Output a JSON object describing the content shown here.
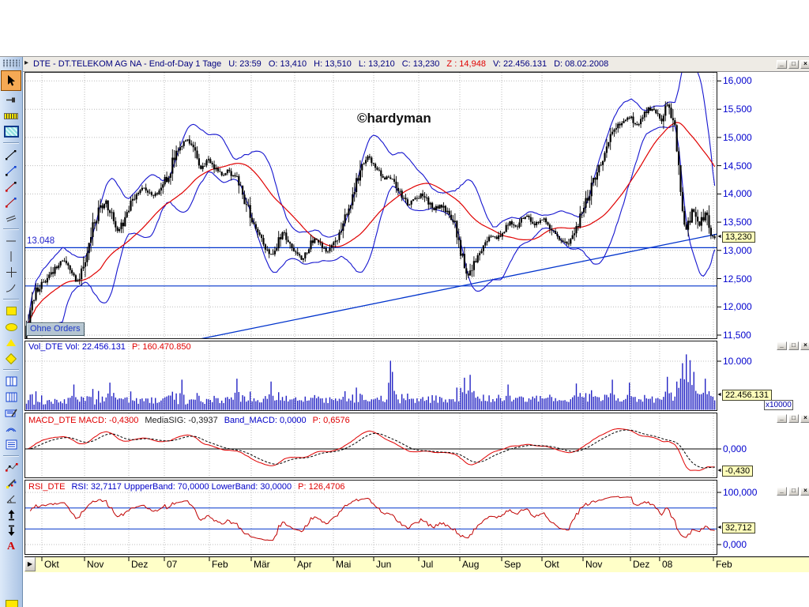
{
  "window": {
    "title": "DTE - DT.TELEKOM AG NA - End-of-Day 1 Tage",
    "title_stats": [
      {
        "text": "U: 23:59",
        "color": "#00007f"
      },
      {
        "text": "O: 13,410",
        "color": "#00007f"
      },
      {
        "text": "H: 13,510",
        "color": "#00007f"
      },
      {
        "text": "L: 13,210",
        "color": "#00007f"
      },
      {
        "text": "C: 13,230",
        "color": "#00007f"
      },
      {
        "text": "Z : 14,948",
        "color": "#e00000"
      },
      {
        "text": "V: 22.456.131",
        "color": "#00007f"
      },
      {
        "text": "D: 08.02.2008",
        "color": "#00007f"
      }
    ],
    "buttons": [
      "minimize",
      "maximize",
      "close"
    ]
  },
  "watermark": "©hardyman",
  "annotations": {
    "orders_label": "Ohne Orders"
  },
  "panes": {
    "volume": {
      "header_main": "Vol_DTE  Vol: 22.456.131",
      "header_p": "P: 160.470.850"
    },
    "macd": {
      "h1": "MACD_DTE  MACD: -0,4300",
      "h2": "MediaSIG: -0,3937",
      "h3": "Band_MACD: 0,0000",
      "h4": "P: 0,6576"
    },
    "rsi": {
      "h1": "RSI_DTE",
      "h2": "RSI: 32,7117  UppperBand: 70,0000  LowerBand: 30,0000",
      "h3": "P: 126,4706"
    }
  },
  "toolbar_tools": [
    "cursor",
    "pin",
    "ruler",
    "zoom-rect",
    "sep",
    "trendline-black",
    "trendline-blue",
    "trendline-red-black",
    "trendline-red-blue",
    "parallel-lines",
    "sep",
    "horizontal-line",
    "vertical-line",
    "cross",
    "curve",
    "sep",
    "rect-shape",
    "ellipse-shape",
    "triangle-shape",
    "diamond-shape",
    "sep",
    "split-2",
    "split-3",
    "edit-grid",
    "waves",
    "lined-box",
    "sep",
    "zigzag",
    "pencil",
    "angle",
    "arrow-up",
    "arrow-down",
    "text"
  ],
  "colors": {
    "axis_text": "#0000cd",
    "candle": "#000000",
    "ma_line": "#e00000",
    "band_line": "#1515cf",
    "support_line": "#0033cc",
    "volume_bar": "#2424c4",
    "macd_line": "#e00000",
    "signal_line": "#000000",
    "rsi_line": "#c00000",
    "value_box_bg": "#ffffbb",
    "axis_strip_bg": "#ffffc8"
  },
  "chart_data": [
    {
      "type": "candlestick",
      "name": "price",
      "title": "DTE - DT.TELEKOM AG NA - End-of-Day 1 Tage",
      "ylim": [
        11430,
        16160
      ],
      "yticks": [
        {
          "v": 16000,
          "label": "16,000"
        },
        {
          "v": 15500,
          "label": "15,500"
        },
        {
          "v": 15000,
          "label": "15,000"
        },
        {
          "v": 14500,
          "label": "14,500"
        },
        {
          "v": 14000,
          "label": "14,000"
        },
        {
          "v": 13500,
          "label": "13,500"
        },
        {
          "v": 13000,
          "label": "13,000"
        },
        {
          "v": 12500,
          "label": "12,500"
        },
        {
          "v": 12000,
          "label": "12,000"
        },
        {
          "v": 11500,
          "label": "11,500"
        }
      ],
      "xticks": [
        {
          "f": 0.0251,
          "label": "Okt"
        },
        {
          "f": 0.0867,
          "label": "Nov"
        },
        {
          "f": 0.1505,
          "label": "Dez"
        },
        {
          "f": 0.2018,
          "label": "07"
        },
        {
          "f": 0.2668,
          "label": "Feb"
        },
        {
          "f": 0.3272,
          "label": "Mär"
        },
        {
          "f": 0.39,
          "label": "Apr"
        },
        {
          "f": 0.4458,
          "label": "Mai"
        },
        {
          "f": 0.504,
          "label": "Jun"
        },
        {
          "f": 0.569,
          "label": "Jul"
        },
        {
          "f": 0.6283,
          "label": "Aug"
        },
        {
          "f": 0.6887,
          "label": "Sep"
        },
        {
          "f": 0.7469,
          "label": "Okt"
        },
        {
          "f": 0.8062,
          "label": "Nov"
        },
        {
          "f": 0.8746,
          "label": "Dez"
        },
        {
          "f": 0.9167,
          "label": "08"
        },
        {
          "f": 0.9943,
          "label": "Feb"
        }
      ],
      "last_value_label": "13,230",
      "support_lines": [
        {
          "price": 13048,
          "label": "13.048"
        },
        {
          "price": 12370,
          "label": ""
        }
      ],
      "trendline": {
        "p1": {
          "f": 0.2258,
          "price": 11363
        },
        "p2": {
          "f": 1.0,
          "price": 13290
        }
      },
      "overlays": [
        "bollinger-upper",
        "bollinger-lower",
        "moving-average-red"
      ],
      "close_path": [
        [
          0.0,
          11700
        ],
        [
          0.006,
          11950
        ],
        [
          0.013,
          12250
        ],
        [
          0.022,
          12400
        ],
        [
          0.031,
          12500
        ],
        [
          0.042,
          12700
        ],
        [
          0.054,
          12820
        ],
        [
          0.063,
          12680
        ],
        [
          0.071,
          12440
        ],
        [
          0.079,
          12580
        ],
        [
          0.088,
          12950
        ],
        [
          0.097,
          13420
        ],
        [
          0.107,
          13750
        ],
        [
          0.115,
          13900
        ],
        [
          0.123,
          13620
        ],
        [
          0.132,
          13360
        ],
        [
          0.14,
          13480
        ],
        [
          0.149,
          13780
        ],
        [
          0.159,
          14000
        ],
        [
          0.171,
          14120
        ],
        [
          0.182,
          13960
        ],
        [
          0.194,
          14060
        ],
        [
          0.205,
          14320
        ],
        [
          0.217,
          14700
        ],
        [
          0.226,
          14900
        ],
        [
          0.235,
          14960
        ],
        [
          0.244,
          14720
        ],
        [
          0.253,
          14450
        ],
        [
          0.262,
          14620
        ],
        [
          0.271,
          14480
        ],
        [
          0.283,
          14330
        ],
        [
          0.294,
          14420
        ],
        [
          0.306,
          14240
        ],
        [
          0.317,
          13900
        ],
        [
          0.326,
          13560
        ],
        [
          0.336,
          13310
        ],
        [
          0.345,
          13120
        ],
        [
          0.354,
          12920
        ],
        [
          0.363,
          13060
        ],
        [
          0.372,
          13310
        ],
        [
          0.381,
          13160
        ],
        [
          0.391,
          12960
        ],
        [
          0.4,
          12820
        ],
        [
          0.409,
          13010
        ],
        [
          0.418,
          13210
        ],
        [
          0.427,
          13110
        ],
        [
          0.436,
          12960
        ],
        [
          0.446,
          13110
        ],
        [
          0.455,
          13310
        ],
        [
          0.464,
          13610
        ],
        [
          0.473,
          13910
        ],
        [
          0.48,
          14210
        ],
        [
          0.487,
          14510
        ],
        [
          0.494,
          14660
        ],
        [
          0.501,
          14600
        ],
        [
          0.51,
          14410
        ],
        [
          0.519,
          14260
        ],
        [
          0.528,
          14310
        ],
        [
          0.537,
          14160
        ],
        [
          0.546,
          13960
        ],
        [
          0.556,
          13810
        ],
        [
          0.565,
          13910
        ],
        [
          0.574,
          14010
        ],
        [
          0.583,
          13860
        ],
        [
          0.592,
          13710
        ],
        [
          0.601,
          13810
        ],
        [
          0.611,
          13660
        ],
        [
          0.62,
          13510
        ],
        [
          0.627,
          13260
        ],
        [
          0.633,
          12910
        ],
        [
          0.64,
          12500
        ],
        [
          0.647,
          12700
        ],
        [
          0.656,
          12910
        ],
        [
          0.666,
          13110
        ],
        [
          0.675,
          13260
        ],
        [
          0.684,
          13210
        ],
        [
          0.693,
          13360
        ],
        [
          0.702,
          13510
        ],
        [
          0.711,
          13410
        ],
        [
          0.721,
          13560
        ],
        [
          0.73,
          13610
        ],
        [
          0.739,
          13460
        ],
        [
          0.748,
          13560
        ],
        [
          0.757,
          13510
        ],
        [
          0.766,
          13310
        ],
        [
          0.776,
          13210
        ],
        [
          0.785,
          13110
        ],
        [
          0.794,
          13310
        ],
        [
          0.803,
          13510
        ],
        [
          0.812,
          13810
        ],
        [
          0.821,
          14110
        ],
        [
          0.83,
          14410
        ],
        [
          0.84,
          14710
        ],
        [
          0.849,
          15010
        ],
        [
          0.858,
          15210
        ],
        [
          0.867,
          15310
        ],
        [
          0.876,
          15360
        ],
        [
          0.885,
          15210
        ],
        [
          0.895,
          15360
        ],
        [
          0.904,
          15510
        ],
        [
          0.913,
          15460
        ],
        [
          0.922,
          15310
        ],
        [
          0.93,
          15610
        ],
        [
          0.936,
          15420
        ],
        [
          0.94,
          15310
        ],
        [
          0.945,
          14810
        ],
        [
          0.95,
          14210
        ],
        [
          0.954,
          13710
        ],
        [
          0.959,
          13310
        ],
        [
          0.963,
          13510
        ],
        [
          0.968,
          13710
        ],
        [
          0.972,
          13610
        ],
        [
          0.977,
          13410
        ],
        [
          0.982,
          13560
        ],
        [
          0.986,
          13710
        ],
        [
          0.991,
          13460
        ],
        [
          0.995,
          13310
        ],
        [
          1.0,
          13230
        ]
      ]
    },
    {
      "type": "bar",
      "name": "volume",
      "ytick": {
        "v": 10000,
        "label": "10.000"
      },
      "scale_note": "x10000",
      "last_value_label": "22.456.131",
      "spikes": [
        [
          0.07,
          5200
        ],
        [
          0.12,
          5600
        ],
        [
          0.225,
          6200
        ],
        [
          0.306,
          6400
        ],
        [
          0.355,
          5800
        ],
        [
          0.528,
          10100
        ],
        [
          0.533,
          7800
        ],
        [
          0.635,
          6600
        ],
        [
          0.645,
          7200
        ],
        [
          0.7,
          5200
        ],
        [
          0.8,
          5400
        ],
        [
          0.85,
          6200
        ],
        [
          0.875,
          5600
        ],
        [
          0.93,
          6800
        ],
        [
          0.952,
          9600
        ],
        [
          0.958,
          11400
        ],
        [
          0.963,
          10200
        ],
        [
          0.97,
          7800
        ],
        [
          0.985,
          6400
        ]
      ]
    },
    {
      "type": "line",
      "name": "macd",
      "series": [
        {
          "name": "MACD",
          "color": "#e00000",
          "style": "solid"
        },
        {
          "name": "MediaSIG",
          "color": "#000000",
          "style": "dashed"
        }
      ],
      "params": {
        "fast": 12,
        "slow": 26,
        "signal": 9
      },
      "zero_label": "0,000",
      "last_value_label": "-0,430"
    },
    {
      "type": "line",
      "name": "rsi",
      "period": 14,
      "bands": {
        "upper": 70,
        "lower": 30
      },
      "yticks": [
        {
          "v": 100,
          "label": "100,000"
        },
        {
          "v": 0,
          "label": "0,000"
        }
      ],
      "last_value_label": "32,712"
    }
  ]
}
